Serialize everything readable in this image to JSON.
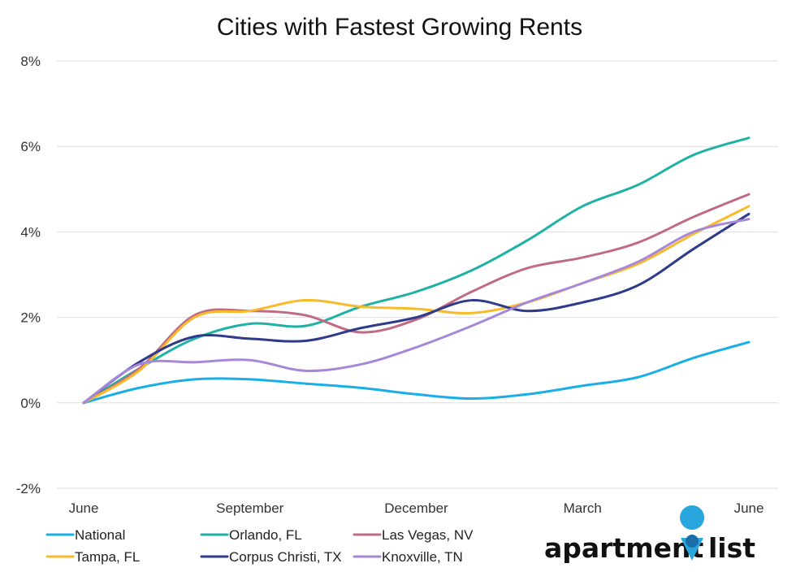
{
  "chart_data": {
    "type": "line",
    "title": "Cities with Fastest Growing Rents",
    "xlabel": "",
    "ylabel": "",
    "x_ticks": [
      "June",
      "September",
      "December",
      "March",
      "June"
    ],
    "y_ticks": [
      "8%",
      "6%",
      "4%",
      "2%",
      "0%",
      "-2%"
    ],
    "y_tick_values": [
      8,
      6,
      4,
      2,
      0,
      -2
    ],
    "ylim": [
      -2,
      8
    ],
    "grid": "horizontal",
    "legend_position": "bottom",
    "x": [
      0,
      1,
      2,
      3,
      4,
      5,
      6,
      7,
      8,
      9,
      10,
      11,
      12
    ],
    "series": [
      {
        "name": "National",
        "color": "#1aaee8",
        "values": [
          0.0,
          0.35,
          0.55,
          0.55,
          0.45,
          0.35,
          0.2,
          0.1,
          0.2,
          0.4,
          0.6,
          1.05,
          1.42
        ]
      },
      {
        "name": "Orlando, FL",
        "color": "#1fb2a4",
        "values": [
          0.0,
          0.8,
          1.5,
          1.85,
          1.8,
          2.25,
          2.6,
          3.1,
          3.8,
          4.6,
          5.1,
          5.8,
          6.2
        ]
      },
      {
        "name": "Las Vegas, NV",
        "color": "#c06b84",
        "values": [
          0.0,
          0.8,
          2.05,
          2.15,
          2.05,
          1.65,
          1.95,
          2.6,
          3.15,
          3.4,
          3.75,
          4.35,
          4.88
        ]
      },
      {
        "name": "Tampa, FL",
        "color": "#f8b92b",
        "values": [
          0.0,
          0.75,
          2.0,
          2.15,
          2.4,
          2.25,
          2.2,
          2.1,
          2.35,
          2.8,
          3.25,
          3.95,
          4.6
        ]
      },
      {
        "name": "Corpus Christi, TX",
        "color": "#2e3a8c",
        "values": [
          0.0,
          0.95,
          1.55,
          1.5,
          1.45,
          1.75,
          2.0,
          2.4,
          2.15,
          2.35,
          2.75,
          3.6,
          4.42
        ]
      },
      {
        "name": "Knoxville, TN",
        "color": "#a788d8",
        "values": [
          0.0,
          0.9,
          0.95,
          1.0,
          0.75,
          0.9,
          1.3,
          1.8,
          2.35,
          2.8,
          3.3,
          4.0,
          4.3
        ]
      }
    ]
  },
  "brand": {
    "logo_text_left": "apartment",
    "logo_text_right": "list",
    "pin_color": "#2aa6df"
  }
}
